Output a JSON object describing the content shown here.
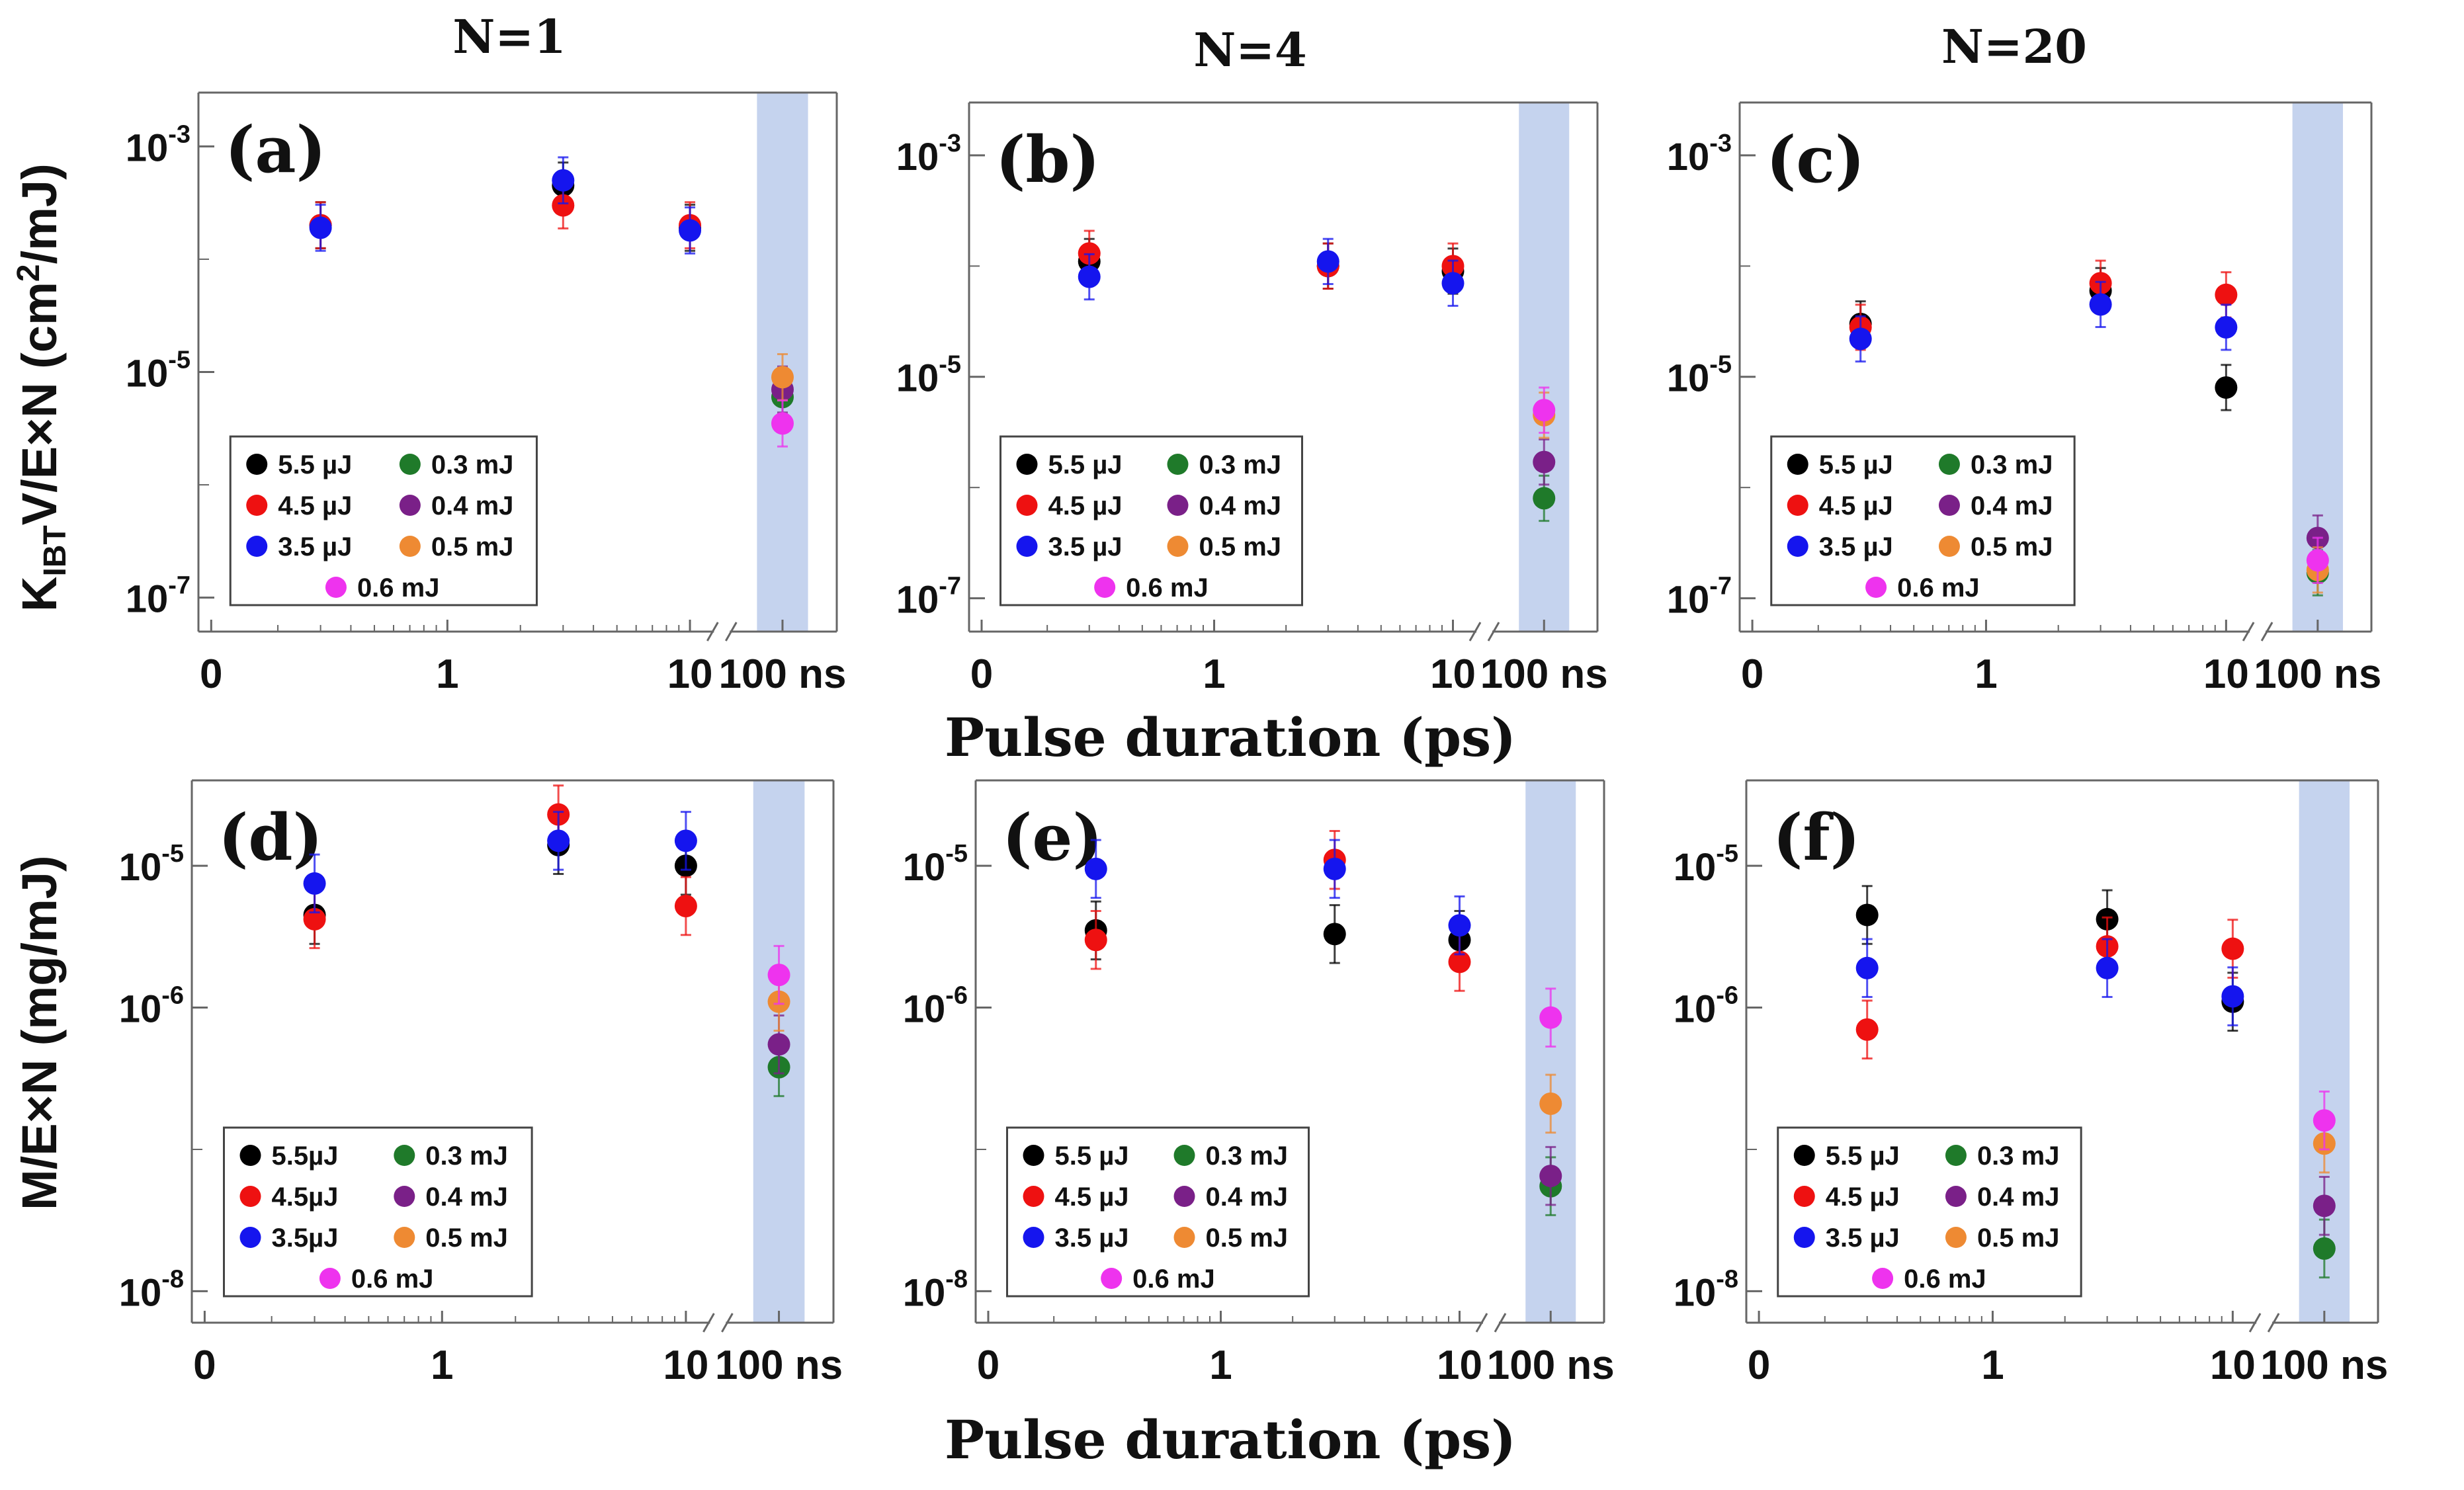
{
  "figure": {
    "column_titles": [
      "N=1",
      "N=4",
      "N=20"
    ],
    "xlabel": "Pulse duration (ps)",
    "ylabel_top": "K_IBT V/E×N (cm²/mJ)",
    "ylabel_bottom": "M/E×N (mg/mJ)",
    "x_tick_labels": [
      "0",
      "1",
      "10",
      "100 ns"
    ]
  },
  "colors": {
    "5.5 µJ": "#000000",
    "4.5 µJ": "#ee1111",
    "3.5 µJ": "#1515ee",
    "0.3 mJ": "#1f7a2a",
    "0.4 mJ": "#7a2088",
    "0.5 mJ": "#ee8a33",
    "0.6 mJ": "#ee33ee",
    "band": "#c5d3ee"
  },
  "chart_data": [
    {
      "type": "scatter",
      "panel": "(a)",
      "x_scale": "broken-log",
      "y_scale": "log",
      "ylim": [
        5e-08,
        0.003
      ],
      "ytick_labels": [
        "10^-3",
        "10^-5",
        "10^-7"
      ],
      "legend": [
        "5.5 µJ",
        "4.5 µJ",
        "3.5 µJ",
        "0.3 mJ",
        "0.4 mJ",
        "0.5 mJ",
        "0.6 mJ"
      ],
      "series": [
        {
          "name": "5.5 µJ",
          "points": [
            {
              "x": 0.3,
              "y": 0.0002
            },
            {
              "x": 3,
              "y": 0.00045
            },
            {
              "x": 10,
              "y": 0.00019
            }
          ]
        },
        {
          "name": "4.5 µJ",
          "points": [
            {
              "x": 0.3,
              "y": 0.0002
            },
            {
              "x": 3,
              "y": 0.0003
            },
            {
              "x": 10,
              "y": 0.0002
            }
          ]
        },
        {
          "name": "3.5 µJ",
          "points": [
            {
              "x": 0.3,
              "y": 0.00019
            },
            {
              "x": 3,
              "y": 0.0005
            },
            {
              "x": 10,
              "y": 0.00018
            }
          ]
        },
        {
          "name": "0.3 mJ",
          "points": [
            {
              "x": "100 ns",
              "y": 6e-06
            }
          ]
        },
        {
          "name": "0.4 mJ",
          "points": [
            {
              "x": "100 ns",
              "y": 7e-06
            }
          ]
        },
        {
          "name": "0.5 mJ",
          "points": [
            {
              "x": "100 ns",
              "y": 9e-06
            }
          ]
        },
        {
          "name": "0.6 mJ",
          "points": [
            {
              "x": "100 ns",
              "y": 3.5e-06
            }
          ]
        }
      ]
    },
    {
      "type": "scatter",
      "panel": "(b)",
      "x_scale": "broken-log",
      "y_scale": "log",
      "ylim": [
        5e-08,
        0.003
      ],
      "ytick_labels": [
        "10^-3",
        "10^-5",
        "10^-7"
      ],
      "legend": [
        "5.5 µJ",
        "4.5 µJ",
        "3.5 µJ",
        "0.3 mJ",
        "0.4 mJ",
        "0.5 mJ",
        "0.6 mJ"
      ],
      "series": [
        {
          "name": "5.5 µJ",
          "points": [
            {
              "x": 0.3,
              "y": 0.00011
            },
            {
              "x": 3,
              "y": 0.0001
            },
            {
              "x": 10,
              "y": 9e-05
            }
          ]
        },
        {
          "name": "4.5 µJ",
          "points": [
            {
              "x": 0.3,
              "y": 0.00013
            },
            {
              "x": 3,
              "y": 0.0001
            },
            {
              "x": 10,
              "y": 0.0001
            }
          ]
        },
        {
          "name": "3.5 µJ",
          "points": [
            {
              "x": 0.3,
              "y": 8e-05
            },
            {
              "x": 3,
              "y": 0.00011
            },
            {
              "x": 10,
              "y": 7e-05
            }
          ]
        },
        {
          "name": "0.3 mJ",
          "points": [
            {
              "x": "100 ns",
              "y": 8e-07
            }
          ]
        },
        {
          "name": "0.4 mJ",
          "points": [
            {
              "x": "100 ns",
              "y": 1.7e-06
            }
          ]
        },
        {
          "name": "0.5 mJ",
          "points": [
            {
              "x": "100 ns",
              "y": 4.5e-06
            }
          ]
        },
        {
          "name": "0.6 mJ",
          "points": [
            {
              "x": "100 ns",
              "y": 5e-06
            }
          ]
        }
      ]
    },
    {
      "type": "scatter",
      "panel": "(c)",
      "x_scale": "broken-log",
      "y_scale": "log",
      "ylim": [
        5e-08,
        0.003
      ],
      "ytick_labels": [
        "10^-3",
        "10^-5",
        "10^-7"
      ],
      "legend": [
        "5.5 µJ",
        "4.5 µJ",
        "3.5 µJ",
        "0.3 mJ",
        "0.4 mJ",
        "0.5 mJ",
        "0.6 mJ"
      ],
      "series": [
        {
          "name": "5.5 µJ",
          "points": [
            {
              "x": 0.3,
              "y": 3e-05
            },
            {
              "x": 3,
              "y": 6e-05
            },
            {
              "x": 10,
              "y": 8e-06
            }
          ]
        },
        {
          "name": "4.5 µJ",
          "points": [
            {
              "x": 0.3,
              "y": 2.8e-05
            },
            {
              "x": 3,
              "y": 7e-05
            },
            {
              "x": 10,
              "y": 5.5e-05
            }
          ]
        },
        {
          "name": "3.5 µJ",
          "points": [
            {
              "x": 0.3,
              "y": 2.2e-05
            },
            {
              "x": 3,
              "y": 4.5e-05
            },
            {
              "x": 10,
              "y": 2.8e-05
            }
          ]
        },
        {
          "name": "0.3 mJ",
          "points": [
            {
              "x": "100 ns",
              "y": 1.7e-07
            }
          ]
        },
        {
          "name": "0.4 mJ",
          "points": [
            {
              "x": "100 ns",
              "y": 3.5e-07
            }
          ]
        },
        {
          "name": "0.5 mJ",
          "points": [
            {
              "x": "100 ns",
              "y": 1.8e-07
            }
          ]
        },
        {
          "name": "0.6 mJ",
          "points": [
            {
              "x": "100 ns",
              "y": 2.2e-07
            }
          ]
        }
      ]
    },
    {
      "type": "scatter",
      "panel": "(d)",
      "x_scale": "broken-log",
      "y_scale": "log",
      "ylim": [
        6e-09,
        4e-05
      ],
      "ytick_labels": [
        "10^-5",
        "10^-6",
        "10^-8"
      ],
      "legend": [
        "5.5µJ",
        "4.5µJ",
        "3.5µJ",
        "0.3 mJ",
        "0.4 mJ",
        "0.5 mJ",
        "0.6 mJ"
      ],
      "series": [
        {
          "name": "5.5µJ",
          "points": [
            {
              "x": 0.3,
              "y": 4.5e-06
            },
            {
              "x": 3,
              "y": 1.4e-05
            },
            {
              "x": 10,
              "y": 1e-05
            }
          ]
        },
        {
          "name": "4.5µJ",
          "points": [
            {
              "x": 0.3,
              "y": 4.2e-06
            },
            {
              "x": 3,
              "y": 2.3e-05
            },
            {
              "x": 10,
              "y": 5.2e-06
            }
          ]
        },
        {
          "name": "3.5µJ",
          "points": [
            {
              "x": 0.3,
              "y": 7.5e-06
            },
            {
              "x": 3,
              "y": 1.5e-05
            },
            {
              "x": 10,
              "y": 1.5e-05
            }
          ]
        },
        {
          "name": "0.3 mJ",
          "points": [
            {
              "x": "100 ns",
              "y": 3.8e-07
            }
          ]
        },
        {
          "name": "0.4 mJ",
          "points": [
            {
              "x": "100 ns",
              "y": 5.5e-07
            }
          ]
        },
        {
          "name": "0.5 mJ",
          "points": [
            {
              "x": "100 ns",
              "y": 1.1e-06
            }
          ]
        },
        {
          "name": "0.6 mJ",
          "points": [
            {
              "x": "100 ns",
              "y": 1.7e-06
            }
          ]
        }
      ]
    },
    {
      "type": "scatter",
      "panel": "(e)",
      "x_scale": "broken-log",
      "y_scale": "log",
      "ylim": [
        6e-09,
        4e-05
      ],
      "ytick_labels": [
        "10^-5",
        "10^-6",
        "10^-8"
      ],
      "legend": [
        "5.5 µJ",
        "4.5 µJ",
        "3.5 µJ",
        "0.3 mJ",
        "0.4 mJ",
        "0.5 mJ",
        "0.6 mJ"
      ],
      "series": [
        {
          "name": "5.5 µJ",
          "points": [
            {
              "x": 0.3,
              "y": 3.5e-06
            },
            {
              "x": 3,
              "y": 3.3e-06
            },
            {
              "x": 10,
              "y": 3e-06
            }
          ]
        },
        {
          "name": "4.5 µJ",
          "points": [
            {
              "x": 0.3,
              "y": 3e-06
            },
            {
              "x": 3,
              "y": 1.1e-05
            },
            {
              "x": 10,
              "y": 2.1e-06
            }
          ]
        },
        {
          "name": "3.5 µJ",
          "points": [
            {
              "x": 0.3,
              "y": 9.5e-06
            },
            {
              "x": 3,
              "y": 9.5e-06
            },
            {
              "x": 10,
              "y": 3.8e-06
            }
          ]
        },
        {
          "name": "0.3 mJ",
          "points": [
            {
              "x": "100 ns",
              "y": 5.5e-08
            }
          ]
        },
        {
          "name": "0.4 mJ",
          "points": [
            {
              "x": "100 ns",
              "y": 6.5e-08
            }
          ]
        },
        {
          "name": "0.5 mJ",
          "points": [
            {
              "x": "100 ns",
              "y": 2.1e-07
            }
          ]
        },
        {
          "name": "0.6 mJ",
          "points": [
            {
              "x": "100 ns",
              "y": 8.5e-07
            }
          ]
        }
      ]
    },
    {
      "type": "scatter",
      "panel": "(f)",
      "x_scale": "broken-log",
      "y_scale": "log",
      "ylim": [
        6e-09,
        4e-05
      ],
      "ytick_labels": [
        "10^-5",
        "10^-6",
        "10^-8"
      ],
      "legend": [
        "5.5 µJ",
        "4.5 µJ",
        "3.5 µJ",
        "0.3 mJ",
        "0.4 mJ",
        "0.5 mJ",
        "0.6 mJ"
      ],
      "series": [
        {
          "name": "5.5 µJ",
          "points": [
            {
              "x": 0.3,
              "y": 4.5e-06
            },
            {
              "x": 3,
              "y": 4.2e-06
            },
            {
              "x": 10,
              "y": 1.1e-06
            }
          ]
        },
        {
          "name": "4.5 µJ",
          "points": [
            {
              "x": 0.3,
              "y": 7e-07
            },
            {
              "x": 3,
              "y": 2.7e-06
            },
            {
              "x": 10,
              "y": 2.6e-06
            }
          ]
        },
        {
          "name": "3.5 µJ",
          "points": [
            {
              "x": 0.3,
              "y": 1.9e-06
            },
            {
              "x": 3,
              "y": 1.9e-06
            },
            {
              "x": 10,
              "y": 1.2e-06
            }
          ]
        },
        {
          "name": "0.3 mJ",
          "points": [
            {
              "x": "100 ns",
              "y": 2e-08
            }
          ]
        },
        {
          "name": "0.4 mJ",
          "points": [
            {
              "x": "100 ns",
              "y": 4e-08
            }
          ]
        },
        {
          "name": "0.5 mJ",
          "points": [
            {
              "x": "100 ns",
              "y": 1.1e-07
            }
          ]
        },
        {
          "name": "0.6 mJ",
          "points": [
            {
              "x": "100 ns",
              "y": 1.6e-07
            }
          ]
        }
      ]
    }
  ]
}
